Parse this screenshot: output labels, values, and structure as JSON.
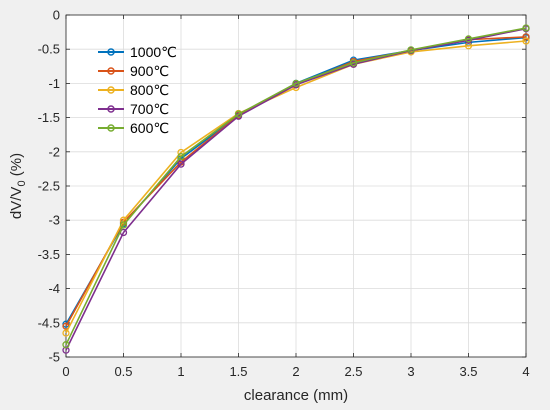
{
  "chart_data": {
    "type": "line",
    "xlabel": "clearance (mm)",
    "ylabel_main": "dV/V",
    "ylabel_sub": "0",
    "ylabel_unit": " (%)",
    "xlim": [
      0,
      4
    ],
    "ylim": [
      -5,
      0
    ],
    "xticks": [
      0,
      0.5,
      1,
      1.5,
      2,
      2.5,
      3,
      3.5,
      4
    ],
    "yticks": [
      0,
      -0.5,
      -1,
      -1.5,
      -2,
      -2.5,
      -3,
      -3.5,
      -4,
      -4.5,
      -5
    ],
    "grid": true,
    "legend_position": "top-left",
    "x": [
      0,
      0.5,
      1,
      1.5,
      2,
      2.5,
      3,
      3.5,
      4
    ],
    "series": [
      {
        "name": "1000℃",
        "color": "#0072BD",
        "values": [
          -4.52,
          -3.05,
          -2.1,
          -1.47,
          -1.0,
          -0.66,
          -0.52,
          -0.4,
          -0.33
        ]
      },
      {
        "name": "900℃",
        "color": "#D95319",
        "values": [
          -4.55,
          -3.03,
          -2.15,
          -1.47,
          -1.02,
          -0.68,
          -0.52,
          -0.36,
          -0.32
        ]
      },
      {
        "name": "800℃",
        "color": "#EDB120",
        "values": [
          -4.65,
          -3.0,
          -2.01,
          -1.44,
          -1.06,
          -0.72,
          -0.54,
          -0.45,
          -0.38
        ]
      },
      {
        "name": "700℃",
        "color": "#7E2F8E",
        "values": [
          -4.9,
          -3.18,
          -2.18,
          -1.48,
          -1.02,
          -0.72,
          -0.52,
          -0.37,
          -0.2
        ]
      },
      {
        "name": "600℃",
        "color": "#77AC30",
        "values": [
          -4.82,
          -3.07,
          -2.07,
          -1.45,
          -1.0,
          -0.7,
          -0.51,
          -0.35,
          -0.19
        ]
      }
    ]
  }
}
